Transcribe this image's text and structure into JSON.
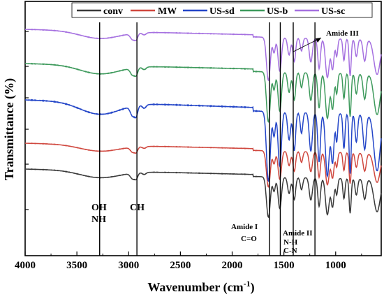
{
  "chart_data": {
    "type": "line",
    "xlabel": "Wavenumber (cm",
    "xlabel_sup": "-1",
    "xlabel_end": ")",
    "ylabel": "Transmittance (%)",
    "xlim": [
      4000,
      560
    ],
    "x_ticks": [
      4000,
      3500,
      3000,
      2500,
      2000,
      1500,
      1000
    ],
    "x_tick_labels": [
      "4000",
      "3500",
      "3000",
      "2500",
      "2000",
      "1500",
      "1000"
    ],
    "grid": false,
    "legend_position": "top",
    "series": [
      {
        "name": "conv",
        "color": "#3a3a3a",
        "offset": 0
      },
      {
        "name": "MW",
        "color": "#d0483f",
        "offset": 1
      },
      {
        "name": "US-sd",
        "color": "#2446c8",
        "offset": 2
      },
      {
        "name": "US-b",
        "color": "#3e9a5c",
        "offset": 3
      },
      {
        "name": "US-sc",
        "color": "#a570e0",
        "offset": 4
      }
    ],
    "markers": [
      3280,
      2920,
      1640,
      1535,
      1410,
      1200
    ],
    "annotations": [
      {
        "id": "oh",
        "text": "OH"
      },
      {
        "id": "nh",
        "text": "NH"
      },
      {
        "id": "ch",
        "text": "CH"
      },
      {
        "id": "amide1",
        "text": "Amide I"
      },
      {
        "id": "co",
        "text": "C=O"
      },
      {
        "id": "amide2",
        "text": "Amide II"
      },
      {
        "id": "nh2",
        "text": "N-H"
      },
      {
        "id": "cn",
        "text": "C-N"
      },
      {
        "id": "amide3",
        "text": "Amide III"
      }
    ]
  }
}
